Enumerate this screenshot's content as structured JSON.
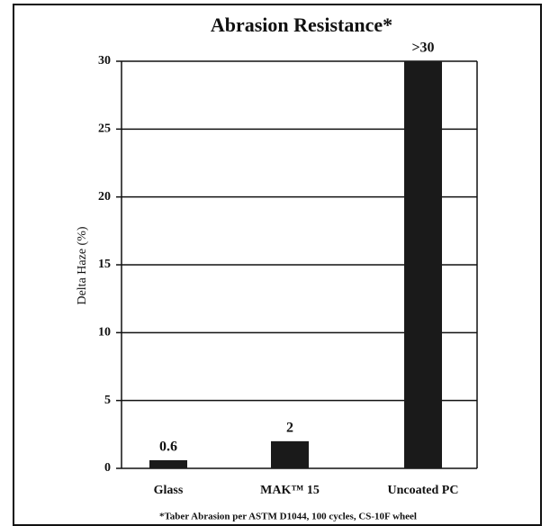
{
  "chart_data": {
    "type": "bar",
    "title": "Abrasion Resistance*",
    "y_label": "Delta Haze (%)",
    "footnote": "*Taber Abrasion per ASTM D1044, 100 cycles, CS-10F wheel",
    "categories": [
      "Glass",
      "MAK™ 15",
      "Uncoated PC"
    ],
    "values": [
      0.6,
      2,
      30
    ],
    "value_labels": [
      "0.6",
      "2",
      ">30"
    ],
    "color": "#1a1a1a",
    "ylim": [
      0,
      30
    ],
    "yticks": [
      0,
      5,
      10,
      15,
      20,
      25,
      30
    ],
    "grid": true
  }
}
